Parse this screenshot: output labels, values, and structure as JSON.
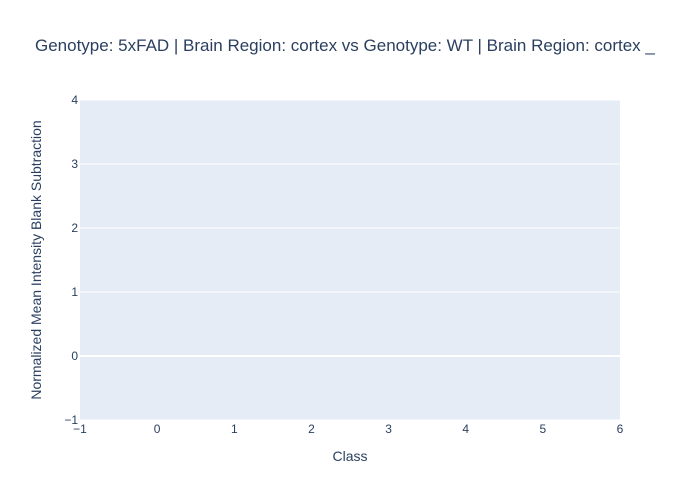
{
  "chart_data": {
    "type": "scatter",
    "title": "Genotype: 5xFAD | Brain Region: cortex  vs Genotype: WT | Brain Region: cortex _",
    "xlabel": "Class",
    "ylabel": "Normalized Mean Intensity Blank Subtraction",
    "xlim": [
      -1,
      6
    ],
    "ylim": [
      -1,
      4
    ],
    "x_ticks": [
      "−1",
      "0",
      "1",
      "2",
      "3",
      "4",
      "5",
      "6"
    ],
    "y_ticks": [
      "−1",
      "0",
      "1",
      "2",
      "3",
      "4"
    ],
    "series": [],
    "grid": true,
    "legend": "none",
    "colors": {
      "plot_background": "#e5ecf6",
      "gridline": "#ffffff",
      "text": "#2a3f5f"
    }
  }
}
